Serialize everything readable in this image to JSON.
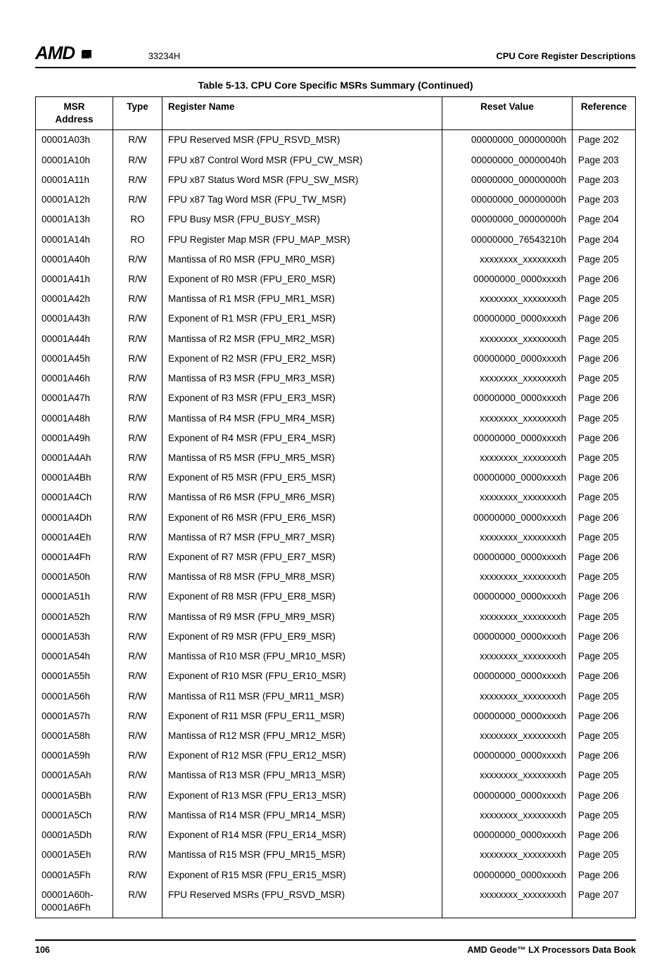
{
  "header": {
    "logo_text": "AMD",
    "logo_arrow": "⬈",
    "doc_number": "33234H",
    "section_title": "CPU Core Register Descriptions"
  },
  "table": {
    "caption": "Table 5-13.  CPU Core Specific MSRs Summary  (Continued)",
    "columns": {
      "addr_line1": "MSR",
      "addr_line2": "Address",
      "type": "Type",
      "name": "Register Name",
      "reset": "Reset Value",
      "ref": "Reference"
    },
    "rows": [
      {
        "addr": "00001A03h",
        "type": "R/W",
        "name": "FPU Reserved MSR (FPU_RSVD_MSR)",
        "reset": "00000000_00000000h",
        "ref": "Page 202"
      },
      {
        "addr": "00001A10h",
        "type": "R/W",
        "name": "FPU x87 Control Word MSR (FPU_CW_MSR)",
        "reset": "00000000_00000040h",
        "ref": "Page 203"
      },
      {
        "addr": "00001A11h",
        "type": "R/W",
        "name": "FPU x87 Status Word MSR (FPU_SW_MSR)",
        "reset": "00000000_00000000h",
        "ref": "Page 203"
      },
      {
        "addr": "00001A12h",
        "type": "R/W",
        "name": "FPU x87 Tag Word MSR (FPU_TW_MSR)",
        "reset": "00000000_00000000h",
        "ref": "Page 203"
      },
      {
        "addr": "00001A13h",
        "type": "RO",
        "name": "FPU Busy MSR (FPU_BUSY_MSR)",
        "reset": "00000000_00000000h",
        "ref": "Page 204"
      },
      {
        "addr": "00001A14h",
        "type": "RO",
        "name": "FPU Register Map MSR (FPU_MAP_MSR)",
        "reset": "00000000_76543210h",
        "ref": "Page 204"
      },
      {
        "addr": "00001A40h",
        "type": "R/W",
        "name": "Mantissa of R0 MSR (FPU_MR0_MSR)",
        "reset": "xxxxxxxx_xxxxxxxxh",
        "ref": "Page 205"
      },
      {
        "addr": "00001A41h",
        "type": "R/W",
        "name": "Exponent of R0 MSR (FPU_ER0_MSR)",
        "reset": "00000000_0000xxxxh",
        "ref": "Page 206"
      },
      {
        "addr": "00001A42h",
        "type": "R/W",
        "name": "Mantissa of R1 MSR (FPU_MR1_MSR)",
        "reset": "xxxxxxxx_xxxxxxxxh",
        "ref": "Page 205"
      },
      {
        "addr": "00001A43h",
        "type": "R/W",
        "name": "Exponent of R1 MSR (FPU_ER1_MSR)",
        "reset": "00000000_0000xxxxh",
        "ref": "Page 206"
      },
      {
        "addr": "00001A44h",
        "type": "R/W",
        "name": "Mantissa of R2 MSR (FPU_MR2_MSR)",
        "reset": "xxxxxxxx_xxxxxxxxh",
        "ref": "Page 205"
      },
      {
        "addr": "00001A45h",
        "type": "R/W",
        "name": "Exponent of R2 MSR (FPU_ER2_MSR)",
        "reset": "00000000_0000xxxxh",
        "ref": "Page 206"
      },
      {
        "addr": "00001A46h",
        "type": "R/W",
        "name": "Mantissa of R3 MSR (FPU_MR3_MSR)",
        "reset": "xxxxxxxx_xxxxxxxxh",
        "ref": "Page 205"
      },
      {
        "addr": "00001A47h",
        "type": "R/W",
        "name": "Exponent of R3 MSR (FPU_ER3_MSR)",
        "reset": "00000000_0000xxxxh",
        "ref": "Page 206"
      },
      {
        "addr": "00001A48h",
        "type": "R/W",
        "name": "Mantissa of R4 MSR (FPU_MR4_MSR)",
        "reset": "xxxxxxxx_xxxxxxxxh",
        "ref": "Page 205"
      },
      {
        "addr": "00001A49h",
        "type": "R/W",
        "name": "Exponent of R4 MSR (FPU_ER4_MSR)",
        "reset": "00000000_0000xxxxh",
        "ref": "Page 206"
      },
      {
        "addr": "00001A4Ah",
        "type": "R/W",
        "name": "Mantissa of R5 MSR (FPU_MR5_MSR)",
        "reset": "xxxxxxxx_xxxxxxxxh",
        "ref": "Page 205"
      },
      {
        "addr": "00001A4Bh",
        "type": "R/W",
        "name": "Exponent of R5 MSR (FPU_ER5_MSR)",
        "reset": "00000000_0000xxxxh",
        "ref": "Page 206"
      },
      {
        "addr": "00001A4Ch",
        "type": "R/W",
        "name": "Mantissa of R6 MSR (FPU_MR6_MSR)",
        "reset": "xxxxxxxx_xxxxxxxxh",
        "ref": "Page 205"
      },
      {
        "addr": "00001A4Dh",
        "type": "R/W",
        "name": "Exponent of R6 MSR (FPU_ER6_MSR)",
        "reset": "00000000_0000xxxxh",
        "ref": "Page 206"
      },
      {
        "addr": "00001A4Eh",
        "type": "R/W",
        "name": "Mantissa of R7 MSR (FPU_MR7_MSR)",
        "reset": "xxxxxxxx_xxxxxxxxh",
        "ref": "Page 205"
      },
      {
        "addr": "00001A4Fh",
        "type": "R/W",
        "name": "Exponent of R7 MSR (FPU_ER7_MSR)",
        "reset": "00000000_0000xxxxh",
        "ref": "Page 206"
      },
      {
        "addr": "00001A50h",
        "type": "R/W",
        "name": "Mantissa of R8 MSR (FPU_MR8_MSR)",
        "reset": "xxxxxxxx_xxxxxxxxh",
        "ref": "Page 205"
      },
      {
        "addr": "00001A51h",
        "type": "R/W",
        "name": "Exponent of R8 MSR (FPU_ER8_MSR)",
        "reset": "00000000_0000xxxxh",
        "ref": "Page 206"
      },
      {
        "addr": "00001A52h",
        "type": "R/W",
        "name": "Mantissa of R9 MSR (FPU_MR9_MSR)",
        "reset": "xxxxxxxx_xxxxxxxxh",
        "ref": "Page 205"
      },
      {
        "addr": "00001A53h",
        "type": "R/W",
        "name": "Exponent of R9 MSR (FPU_ER9_MSR)",
        "reset": "00000000_0000xxxxh",
        "ref": "Page 206"
      },
      {
        "addr": "00001A54h",
        "type": "R/W",
        "name": "Mantissa of R10 MSR (FPU_MR10_MSR)",
        "reset": "xxxxxxxx_xxxxxxxxh",
        "ref": "Page 205"
      },
      {
        "addr": "00001A55h",
        "type": "R/W",
        "name": "Exponent of R10 MSR (FPU_ER10_MSR)",
        "reset": "00000000_0000xxxxh",
        "ref": "Page 206"
      },
      {
        "addr": "00001A56h",
        "type": "R/W",
        "name": "Mantissa of R11 MSR (FPU_MR11_MSR)",
        "reset": "xxxxxxxx_xxxxxxxxh",
        "ref": "Page 205"
      },
      {
        "addr": "00001A57h",
        "type": "R/W",
        "name": "Exponent of R11 MSR (FPU_ER11_MSR)",
        "reset": "00000000_0000xxxxh",
        "ref": "Page 206"
      },
      {
        "addr": "00001A58h",
        "type": "R/W",
        "name": "Mantissa of R12 MSR (FPU_MR12_MSR)",
        "reset": "xxxxxxxx_xxxxxxxxh",
        "ref": "Page 205"
      },
      {
        "addr": "00001A59h",
        "type": "R/W",
        "name": "Exponent of R12 MSR (FPU_ER12_MSR)",
        "reset": "00000000_0000xxxxh",
        "ref": "Page 206"
      },
      {
        "addr": "00001A5Ah",
        "type": "R/W",
        "name": "Mantissa of R13 MSR (FPU_MR13_MSR)",
        "reset": "xxxxxxxx_xxxxxxxxh",
        "ref": "Page 205"
      },
      {
        "addr": "00001A5Bh",
        "type": "R/W",
        "name": "Exponent of R13 MSR (FPU_ER13_MSR)",
        "reset": "00000000_0000xxxxh",
        "ref": "Page 206"
      },
      {
        "addr": "00001A5Ch",
        "type": "R/W",
        "name": "Mantissa of R14 MSR (FPU_MR14_MSR)",
        "reset": "xxxxxxxx_xxxxxxxxh",
        "ref": "Page 205"
      },
      {
        "addr": "00001A5Dh",
        "type": "R/W",
        "name": "Exponent of R14 MSR (FPU_ER14_MSR)",
        "reset": "00000000_0000xxxxh",
        "ref": "Page 206"
      },
      {
        "addr": "00001A5Eh",
        "type": "R/W",
        "name": "Mantissa of R15 MSR (FPU_MR15_MSR)",
        "reset": "xxxxxxxx_xxxxxxxxh",
        "ref": "Page 205"
      },
      {
        "addr": "00001A5Fh",
        "type": "R/W",
        "name": "Exponent of R15 MSR (FPU_ER15_MSR)",
        "reset": "00000000_0000xxxxh",
        "ref": "Page 206"
      },
      {
        "addr": "00001A60h-00001A6Fh",
        "type": "R/W",
        "name": "FPU Reserved MSRs (FPU_RSVD_MSR)",
        "reset": "xxxxxxxx_xxxxxxxxh",
        "ref": "Page 207"
      }
    ]
  },
  "footer": {
    "page_number": "106",
    "book_title": "AMD Geode™ LX Processors Data Book"
  }
}
